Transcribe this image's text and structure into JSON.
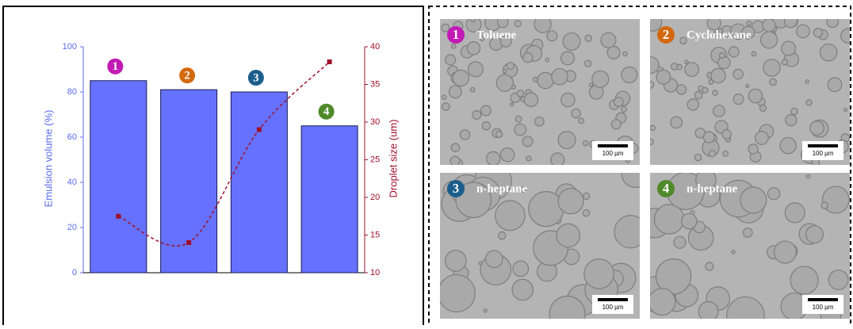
{
  "chart_data": {
    "type": "bar",
    "categories": [
      "1",
      "2",
      "3",
      "4"
    ],
    "category_colors": [
      "#c21bb5",
      "#d3690f",
      "#1b5e8c",
      "#4f8a2a"
    ],
    "series": [
      {
        "name": "Emulsion volume (%)",
        "type": "bar",
        "color": "#6672ff",
        "values": [
          85,
          81,
          80,
          65
        ]
      },
      {
        "name": "Droplet size (um)",
        "type": "line",
        "axis": "y2",
        "color": "#a0102c",
        "values": [
          17.5,
          14,
          29,
          38
        ]
      }
    ],
    "ylabel": "Emulsion volume (%)",
    "y2label": "Droplet size (um)",
    "ylim": [
      0,
      100
    ],
    "yticks": [
      0,
      20,
      40,
      60,
      80,
      100
    ],
    "y2lim": [
      10,
      40
    ],
    "y2ticks": [
      10,
      15,
      20,
      25,
      30,
      35,
      40
    ]
  },
  "panels": [
    {
      "number": "1",
      "label": "Toluene",
      "scale_bar": "100 µm"
    },
    {
      "number": "2",
      "label": "Cyclohexane",
      "scale_bar": "100 µm"
    },
    {
      "number": "3",
      "label": "n-heptane",
      "scale_bar": "100 µm"
    },
    {
      "number": "4",
      "label": "n-heptane",
      "scale_bar": "100 µm"
    }
  ]
}
